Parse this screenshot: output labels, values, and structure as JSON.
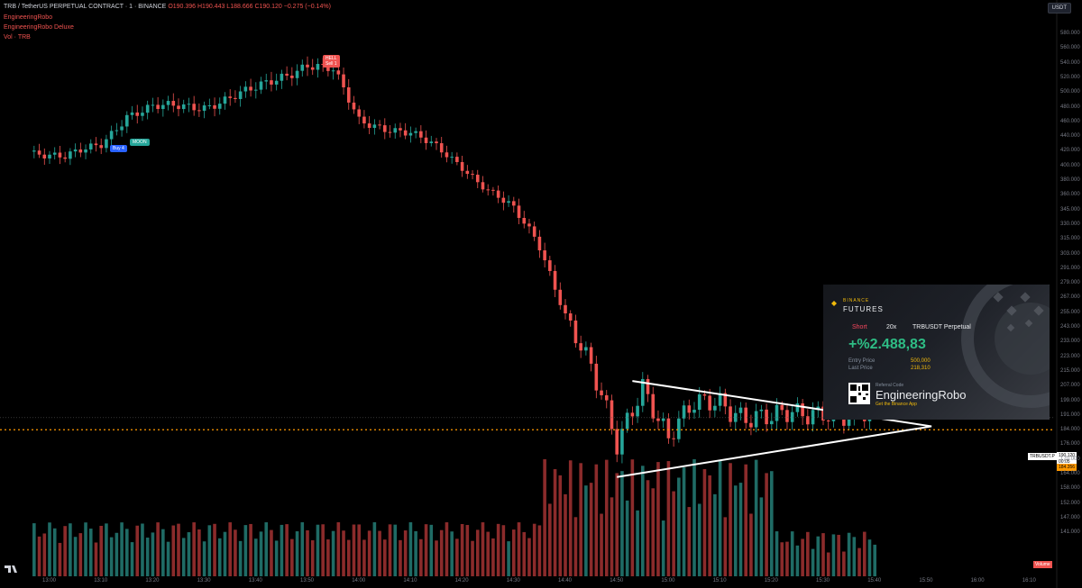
{
  "header": {
    "symbol": "TRB / TetherUS PERPETUAL CONTRACT · 1 · BINANCE",
    "ohlc": "O190.396 H190.443 L188.666 C190.120 −0.275 (−0.14%)",
    "indicators": [
      "EngineeringRobo",
      "EngineeringRobo Deluxe",
      "Vol · TRB"
    ],
    "currency": "USDT"
  },
  "markers": {
    "buy": "Buy 4",
    "moon": "MOON",
    "hell": "HELL",
    "hell_sub": "Sell 1"
  },
  "right_tags": {
    "symbol": "TRBUSDT.P",
    "price": "190.120",
    "countdown": "00:05",
    "level": "184.356",
    "volume_label": "Volume"
  },
  "card": {
    "brand": "BINANCE",
    "product": "FUTURES",
    "side": "Short",
    "leverage": "20x",
    "pair": "TRBUSDT Perpetual",
    "pnl": "+%2.488,83",
    "entry_label": "Entry Price",
    "entry_value": "500,000",
    "last_label": "Last Price",
    "last_value": "218,310",
    "ref_label": "Referral Code",
    "ref_name": "EngineeringRobo",
    "app_text": "Get the Binance App"
  },
  "colors": {
    "up": "#26a69a",
    "down": "#ef5350",
    "upvol": "#1f6b65",
    "downvol": "#8b2b2b",
    "bg": "#000000",
    "level": "#ff9800",
    "trendline": "#ffffff"
  },
  "chart_data": {
    "type": "candlestick",
    "title": "TRB / TetherUS PERPETUAL CONTRACT · 1 · BINANCE",
    "y_ticks": [
      580,
      560,
      540,
      520,
      500,
      480,
      460,
      440,
      420,
      400,
      380,
      360,
      345,
      330,
      315,
      303,
      291,
      279,
      267,
      255,
      243,
      233,
      223,
      215,
      207,
      199,
      191,
      184,
      176,
      170,
      164,
      158,
      152,
      147,
      141
    ],
    "x_ticks": [
      "13:00",
      "13:10",
      "13:20",
      "13:30",
      "13:40",
      "13:50",
      "14:00",
      "14:10",
      "14:20",
      "14:30",
      "14:40",
      "14:50",
      "15:00",
      "15:10",
      "15:20",
      "15:30",
      "15:40",
      "15:50",
      "16:00",
      "16:10"
    ],
    "close_path": [
      [
        "12:57",
        420
      ],
      [
        "13:03",
        412
      ],
      [
        "13:10",
        430
      ],
      [
        "13:15",
        470
      ],
      [
        "13:20",
        480
      ],
      [
        "13:30",
        482
      ],
      [
        "13:40",
        505
      ],
      [
        "13:50",
        540
      ],
      [
        "13:55",
        530
      ],
      [
        "14:00",
        462
      ],
      [
        "14:10",
        445
      ],
      [
        "14:15",
        425
      ],
      [
        "14:20",
        400
      ],
      [
        "14:25",
        368
      ],
      [
        "14:30",
        345
      ],
      [
        "14:35",
        310
      ],
      [
        "14:40",
        255
      ],
      [
        "14:45",
        215
      ],
      [
        "14:50",
        175
      ],
      [
        "14:55",
        210
      ],
      [
        "15:00",
        180
      ],
      [
        "15:05",
        195
      ],
      [
        "15:10",
        200
      ],
      [
        "15:15",
        192
      ],
      [
        "15:20",
        188
      ],
      [
        "15:25",
        192
      ],
      [
        "15:30",
        196
      ],
      [
        "15:35",
        190
      ],
      [
        "15:40",
        190
      ]
    ],
    "levels": {
      "current_price": 190.12,
      "dotted_level": 184.356
    },
    "triangle": {
      "upper": [
        [
          "14:53",
          210
        ],
        [
          "15:51",
          186
        ]
      ],
      "lower": [
        [
          "14:50",
          163
        ],
        [
          "15:51",
          186
        ]
      ]
    },
    "grid": false
  }
}
